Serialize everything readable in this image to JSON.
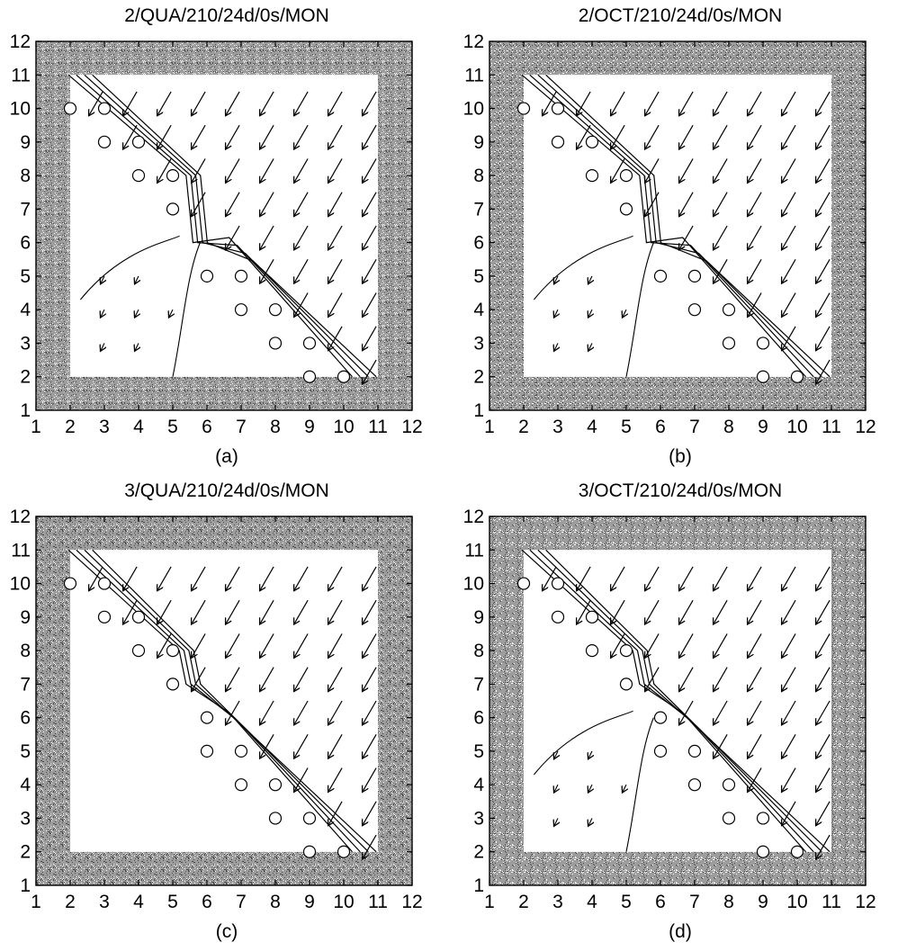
{
  "figure": {
    "panel_labels": [
      "(a)",
      "(b)",
      "(c)",
      "(d)"
    ]
  },
  "chart_data": [
    {
      "type": "vector-field",
      "title": "2/QUA/210/24d/0s/MON",
      "label": "(a)",
      "xlim": [
        1,
        12
      ],
      "ylim": [
        1,
        12
      ],
      "xticks": [
        1,
        2,
        3,
        4,
        5,
        6,
        7,
        8,
        9,
        10,
        11,
        12
      ],
      "yticks": [
        1,
        2,
        3,
        4,
        5,
        6,
        7,
        8,
        9,
        10,
        11,
        12
      ],
      "domain": {
        "x": [
          2,
          11
        ],
        "y": [
          2,
          11
        ]
      },
      "shaded_border": true,
      "vector_direction": "southwest",
      "wet_region_vectors": true,
      "circles": [
        [
          2,
          10
        ],
        [
          3,
          10
        ],
        [
          3,
          9
        ],
        [
          4,
          9
        ],
        [
          4,
          8
        ],
        [
          5,
          8
        ],
        [
          5,
          7
        ],
        [
          6,
          5
        ],
        [
          7,
          5
        ],
        [
          7,
          4
        ],
        [
          8,
          4
        ],
        [
          8,
          3
        ],
        [
          9,
          3
        ],
        [
          9,
          2
        ],
        [
          10,
          2
        ]
      ]
    },
    {
      "type": "vector-field",
      "title": "2/OCT/210/24d/0s/MON",
      "label": "(b)",
      "xlim": [
        1,
        12
      ],
      "ylim": [
        1,
        12
      ],
      "xticks": [
        1,
        2,
        3,
        4,
        5,
        6,
        7,
        8,
        9,
        10,
        11,
        12
      ],
      "yticks": [
        1,
        2,
        3,
        4,
        5,
        6,
        7,
        8,
        9,
        10,
        11,
        12
      ],
      "domain": {
        "x": [
          2,
          11
        ],
        "y": [
          2,
          11
        ]
      },
      "shaded_border": true,
      "vector_direction": "southwest",
      "wet_region_vectors": true,
      "circles": [
        [
          2,
          10
        ],
        [
          3,
          10
        ],
        [
          3,
          9
        ],
        [
          4,
          9
        ],
        [
          4,
          8
        ],
        [
          5,
          8
        ],
        [
          5,
          7
        ],
        [
          6,
          5
        ],
        [
          7,
          5
        ],
        [
          7,
          4
        ],
        [
          8,
          4
        ],
        [
          8,
          3
        ],
        [
          9,
          3
        ],
        [
          9,
          2
        ],
        [
          10,
          2
        ]
      ]
    },
    {
      "type": "vector-field",
      "title": "3/QUA/210/24d/0s/MON",
      "label": "(c)",
      "xlim": [
        1,
        12
      ],
      "ylim": [
        1,
        12
      ],
      "xticks": [
        1,
        2,
        3,
        4,
        5,
        6,
        7,
        8,
        9,
        10,
        11,
        12
      ],
      "yticks": [
        1,
        2,
        3,
        4,
        5,
        6,
        7,
        8,
        9,
        10,
        11,
        12
      ],
      "domain": {
        "x": [
          2,
          11
        ],
        "y": [
          2,
          11
        ]
      },
      "shaded_border": true,
      "vector_direction": "southwest",
      "wet_region_vectors": false,
      "circles": [
        [
          2,
          10
        ],
        [
          3,
          10
        ],
        [
          3,
          9
        ],
        [
          4,
          9
        ],
        [
          4,
          8
        ],
        [
          5,
          8
        ],
        [
          5,
          7
        ],
        [
          6,
          6
        ],
        [
          6,
          5
        ],
        [
          7,
          5
        ],
        [
          7,
          4
        ],
        [
          8,
          4
        ],
        [
          8,
          3
        ],
        [
          9,
          3
        ],
        [
          9,
          2
        ],
        [
          10,
          2
        ]
      ]
    },
    {
      "type": "vector-field",
      "title": "3/OCT/210/24d/0s/MON",
      "label": "(d)",
      "xlim": [
        1,
        12
      ],
      "ylim": [
        1,
        12
      ],
      "xticks": [
        1,
        2,
        3,
        4,
        5,
        6,
        7,
        8,
        9,
        10,
        11,
        12
      ],
      "yticks": [
        1,
        2,
        3,
        4,
        5,
        6,
        7,
        8,
        9,
        10,
        11,
        12
      ],
      "domain": {
        "x": [
          2,
          11
        ],
        "y": [
          2,
          11
        ]
      },
      "shaded_border": true,
      "vector_direction": "southwest",
      "wet_region_vectors": true,
      "circles": [
        [
          2,
          10
        ],
        [
          3,
          10
        ],
        [
          3,
          9
        ],
        [
          4,
          9
        ],
        [
          4,
          8
        ],
        [
          5,
          8
        ],
        [
          5,
          7
        ],
        [
          6,
          6
        ],
        [
          6,
          5
        ],
        [
          7,
          5
        ],
        [
          7,
          4
        ],
        [
          8,
          4
        ],
        [
          8,
          3
        ],
        [
          9,
          3
        ],
        [
          9,
          2
        ],
        [
          10,
          2
        ]
      ]
    }
  ]
}
